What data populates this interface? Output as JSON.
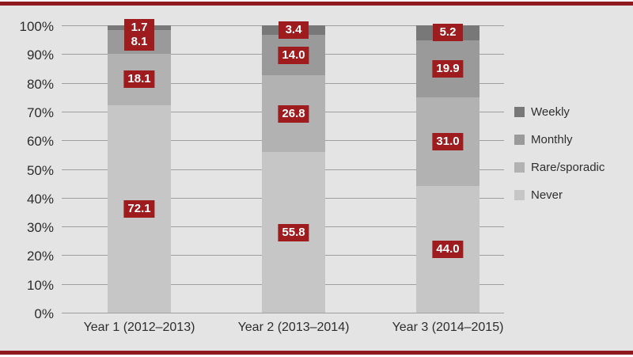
{
  "colors": {
    "horizontal_rule": "#8e1a1f",
    "chart_background": "#e5e4e4",
    "gridline": "#9f9fa0",
    "value_label_box": "#9e1b1e",
    "value_label_text": "#ffffff",
    "axis_text": "#2d2d2d"
  },
  "chart_data": {
    "type": "bar",
    "stacked": true,
    "title": "",
    "xlabel": "",
    "ylabel": "",
    "ylim": [
      0,
      100
    ],
    "grid": true,
    "legend_position": "right",
    "y_ticks": [
      "0%",
      "10%",
      "20%",
      "30%",
      "40%",
      "50%",
      "60%",
      "70%",
      "80%",
      "90%",
      "100%"
    ],
    "y_tick_values": [
      0,
      10,
      20,
      30,
      40,
      50,
      60,
      70,
      80,
      90,
      100
    ],
    "categories": [
      "Year 1 (2012–2013)",
      "Year 2 (2013–2014)",
      "Year 3 (2014–2015)"
    ],
    "series": [
      {
        "name": "Never",
        "color": "#c7c6c6",
        "values": [
          72.1,
          55.8,
          44.0
        ],
        "value_labels": [
          "72.1",
          "55.8",
          "44.0"
        ]
      },
      {
        "name": "Rare/sporadic",
        "color": "#b2b2b2",
        "values": [
          18.1,
          26.8,
          31.0
        ],
        "value_labels": [
          "18.1",
          "26.8",
          "31.0"
        ]
      },
      {
        "name": "Monthly",
        "color": "#9a9a9a",
        "values": [
          8.1,
          14.0,
          19.9
        ],
        "value_labels": [
          "8.1",
          "14.0",
          "19.9"
        ]
      },
      {
        "name": "Weekly",
        "color": "#787878",
        "values": [
          1.7,
          3.4,
          5.2
        ],
        "value_labels": [
          "1.7",
          "3.4",
          "5.2"
        ]
      }
    ],
    "legend_order": [
      "Weekly",
      "Monthly",
      "Rare/sporadic",
      "Never"
    ]
  }
}
